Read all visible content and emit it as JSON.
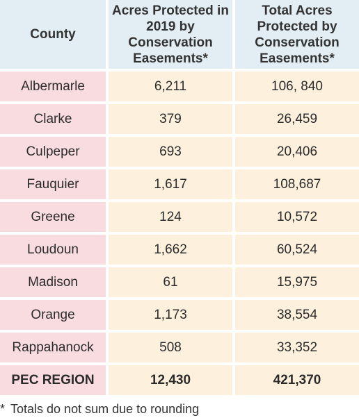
{
  "headers": {
    "county": "County",
    "acres_2019": "Acres Protected in 2019 by Conservation Easements*",
    "total_acres": "Total Acres Protected by Conservation Easements*"
  },
  "rows": [
    {
      "county": "Albermarle",
      "acres_2019": "6,211",
      "total": "106, 840"
    },
    {
      "county": "Clarke",
      "acres_2019": "379",
      "total": "26,459"
    },
    {
      "county": "Culpeper",
      "acres_2019": "693",
      "total": "20,406"
    },
    {
      "county": "Fauquier",
      "acres_2019": "1,617",
      "total": "108,687"
    },
    {
      "county": "Greene",
      "acres_2019": "124",
      "total": "10,572"
    },
    {
      "county": "Loudoun",
      "acres_2019": "1,662",
      "total": "60,524"
    },
    {
      "county": "Madison",
      "acres_2019": "61",
      "total": "15,975"
    },
    {
      "county": "Orange",
      "acres_2019": "1,173",
      "total": "38,554"
    },
    {
      "county": "Rappahanock",
      "acres_2019": "508",
      "total": "33,352"
    }
  ],
  "total_row": {
    "county": "PEC REGION",
    "acres_2019": "12,430",
    "total": "421,370"
  },
  "footnote": {
    "marker": "*",
    "text": "Totals do not sum due to rounding"
  },
  "colors": {
    "header_bg": "#e2eef3",
    "county_bg": "#f9dce0",
    "value_bg": "#fdf0dd"
  }
}
